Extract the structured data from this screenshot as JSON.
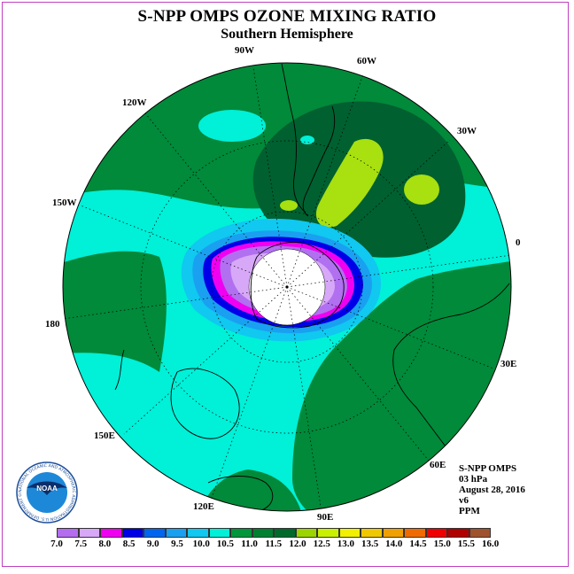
{
  "header": {
    "title": "S-NPP OMPS OZONE MIXING RATIO",
    "subtitle": "Southern Hemisphere"
  },
  "map": {
    "projection": "south-polar-stereographic",
    "longitude_labels": {
      "lon_90w": "90W",
      "lon_60w": "60W",
      "lon_120w": "120W",
      "lon_30w": "30W",
      "lon_150w": "150W",
      "lon_0": "0",
      "lon_180": "180",
      "lon_30e": "30E",
      "lon_150e": "150E",
      "lon_60e": "60E",
      "lon_120e": "120E",
      "lon_90e": "90E"
    },
    "colors": {
      "background_field": "#00f0d8",
      "low_ozone_core": "#ffffff",
      "ring_violet": "#b070f0",
      "ring_magenta": "#f000f0",
      "ring_blue": "#0000e8",
      "band_green": "#008a3a",
      "band_darkgreen": "#006030",
      "max_yellowgreen": "#a8e010"
    }
  },
  "info": {
    "instrument": "S-NPP OMPS",
    "level": "03 hPa",
    "date": "August 28, 2016",
    "version": "v6",
    "units": "PPM"
  },
  "logo": {
    "text": "NOAA",
    "ring_text": "NATIONAL OCEANIC AND ATMOSPHERIC ADMINISTRATION U.S. DEPARTMENT OF COMMERCE"
  },
  "legend": {
    "colors": [
      "#b46cf0",
      "#d8a8f8",
      "#f000f0",
      "#0000e6",
      "#0066f0",
      "#1aa0f0",
      "#10c8f0",
      "#00f0d8",
      "#00963c",
      "#008030",
      "#006a2a",
      "#9cd400",
      "#c8f000",
      "#f0f000",
      "#f0c800",
      "#f0a000",
      "#f06a00",
      "#f00000",
      "#b00000",
      "#a0522d"
    ],
    "ticks": [
      "7.0",
      "7.5",
      "8.0",
      "8.5",
      "9.0",
      "9.5",
      "10.0",
      "10.5",
      "11.0",
      "11.5",
      "12.0",
      "12.5",
      "13.0",
      "13.5",
      "14.0",
      "14.5",
      "15.0",
      "15.5",
      "16.0"
    ]
  }
}
